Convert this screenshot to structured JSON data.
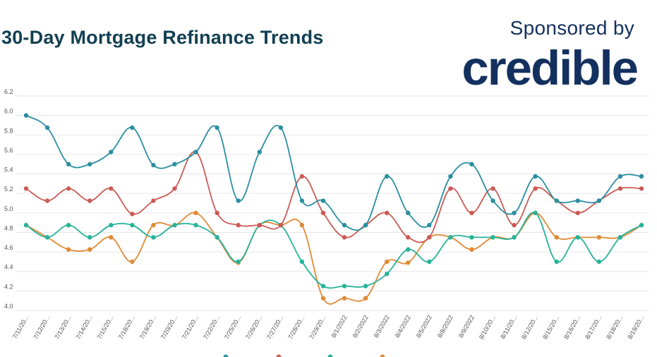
{
  "header": {
    "title": "30-Day Mortgage Refinance Trends",
    "sponsor_text": "Sponsored by",
    "brand": "credible"
  },
  "colors": {
    "title": "#123f52",
    "brand": "#13305e",
    "grid": "#e6e6e6",
    "series": [
      "#2a8fa0",
      "#cc5a55",
      "#27b39a",
      "#e18a36"
    ]
  },
  "chart_data": {
    "type": "line",
    "title": "30-Day Mortgage Refinance Trends",
    "xlabel": "",
    "ylabel": "",
    "ylim": [
      4.0,
      6.2
    ],
    "yticks": [
      "6.2",
      "6.0",
      "5.8",
      "5.6",
      "5.4",
      "5.2",
      "5.0",
      "4.8",
      "4.6",
      "4.4",
      "4.2",
      "4.0"
    ],
    "grid": true,
    "legend_position": "bottom",
    "x": [
      "7/11/20...",
      "7/12/20...",
      "7/13/20...",
      "7/14/20...",
      "7/15/20...",
      "7/18/20...",
      "7/19/20...",
      "7/20/20...",
      "7/21/20...",
      "7/22/20...",
      "7/25/20...",
      "7/26/20...",
      "7/27/20...",
      "7/28/20...",
      "7/29/20...",
      "8/1/2022",
      "8/2/2022",
      "8/3/2022",
      "8/4/2022",
      "8/5/2022",
      "8/8/2022",
      "8/9/2022",
      "8/10/20...",
      "8/11/20...",
      "8/12/20...",
      "8/15/20...",
      "8/16/20...",
      "8/17/20...",
      "8/18/20...",
      "8/19/20..."
    ],
    "series": [
      {
        "values": [
          6.0,
          5.875,
          5.5,
          5.5,
          5.625,
          5.875,
          5.49,
          5.5,
          5.625,
          5.875,
          5.125,
          5.625,
          5.875,
          5.125,
          5.125,
          4.875,
          4.875,
          5.375,
          5.0,
          4.875,
          5.375,
          5.5,
          5.125,
          5.0,
          5.375,
          5.125,
          5.125,
          5.125,
          5.375,
          5.375
        ]
      },
      {
        "values": [
          5.25,
          5.125,
          5.25,
          5.125,
          5.25,
          4.99,
          5.125,
          5.25,
          5.625,
          5.0,
          4.875,
          4.875,
          4.875,
          5.375,
          5.0,
          4.75,
          4.875,
          5.0,
          4.75,
          4.75,
          5.25,
          5.0,
          5.25,
          4.875,
          5.25,
          5.125,
          5.0,
          5.125,
          5.25,
          5.25
        ]
      },
      {
        "values": [
          4.875,
          4.75,
          4.875,
          4.75,
          4.875,
          4.875,
          4.75,
          4.875,
          4.875,
          4.75,
          4.5,
          4.875,
          4.875,
          4.5,
          4.25,
          4.25,
          4.25,
          4.375,
          4.625,
          4.5,
          4.75,
          4.75,
          4.75,
          4.75,
          5.0,
          4.5,
          4.75,
          4.5,
          4.75,
          4.875
        ]
      },
      {
        "values": [
          4.875,
          4.75,
          4.625,
          4.625,
          4.75,
          4.5,
          4.875,
          4.875,
          5.0,
          4.75,
          4.49,
          4.875,
          4.875,
          4.875,
          4.125,
          4.125,
          4.125,
          4.5,
          4.49,
          4.75,
          4.75,
          4.625,
          4.75,
          4.75,
          5.0,
          4.75,
          4.75,
          4.75,
          4.75,
          4.875
        ]
      }
    ]
  }
}
